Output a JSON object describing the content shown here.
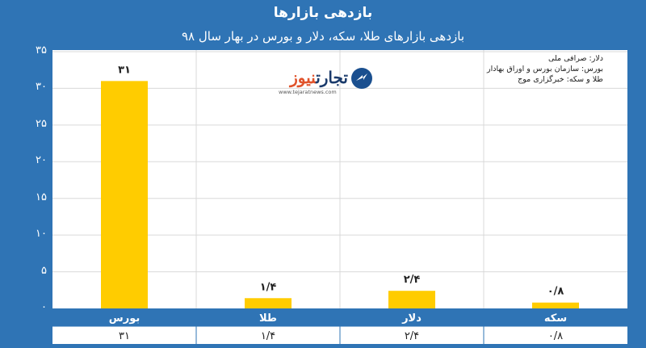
{
  "chart_data": {
    "type": "bar",
    "title": "بازدهی بازارها",
    "subtitle": "بازدهی بازارهای طلا، سکه، دلار و بورس در بهار سال ۹۸",
    "categories": [
      "بورس",
      "طلا",
      "دلار",
      "سکه"
    ],
    "values": [
      31,
      1.4,
      2.4,
      0.8
    ],
    "value_labels": [
      "۳۱",
      "۱/۴",
      "۲/۴",
      "۰/۸"
    ],
    "yticks": [
      0,
      5,
      10,
      15,
      20,
      25,
      30,
      35
    ],
    "ytick_labels": [
      "۰",
      "۵",
      "۱۰",
      "۱۵",
      "۲۰",
      "۲۵",
      "۳۰",
      "۳۵"
    ],
    "ylim": [
      0,
      35
    ],
    "grid": true,
    "bar_color": "#ffcc00",
    "sources": [
      "دلار: صرافی ملی",
      "بورس: سازمان بورس و اوراق بهادار",
      "طلا و سکه: خبرگزاری موج"
    ]
  },
  "logo": {
    "name_part1": "تجارت",
    "name_part2": "نیوز",
    "url": "www.tejaratnews.com"
  },
  "colors": {
    "background": "#2f74b5",
    "plot": "#ffffff",
    "gridline": "#d9d9d9"
  }
}
